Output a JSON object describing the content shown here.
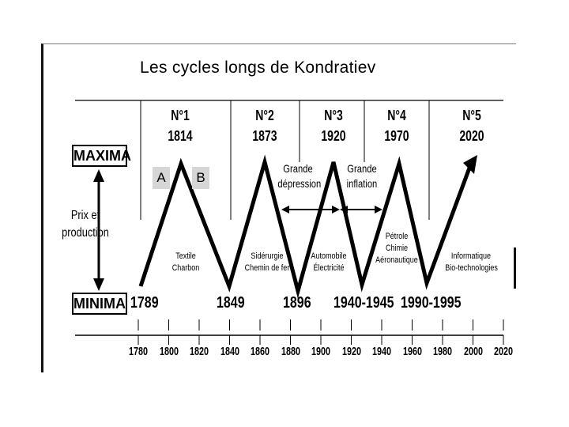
{
  "title": "Les cycles longs de Kondratiev",
  "maxima_label": "MAXIMA",
  "minima_label": "MINIMA",
  "axis_label": {
    "line1": "Prix et",
    "line2": "production"
  },
  "phase_labels": {
    "a": "A",
    "b": "B"
  },
  "cycles": [
    {
      "number": "N°1",
      "year": "1814"
    },
    {
      "number": "N°2",
      "year": "1873"
    },
    {
      "number": "N°3",
      "year": "1920"
    },
    {
      "number": "N°4",
      "year": "1970"
    },
    {
      "number": "N°5",
      "year": "2020"
    }
  ],
  "annotations": {
    "depression": {
      "line1": "Grande",
      "line2": "dépression"
    },
    "inflation": {
      "line1": "Grande",
      "line2": "inflation"
    }
  },
  "sectors": [
    {
      "line1": "Textile",
      "line2": "Charbon"
    },
    {
      "line1": "Sidérurgie",
      "line2": "Chemin de fer"
    },
    {
      "line1": "Automobile",
      "line2": "Électricité"
    },
    {
      "line1": "Pétrole",
      "line2": "Chimie",
      "line3": "Aéronautique"
    },
    {
      "line1": "Informatique",
      "line2": "Bio-technologies"
    }
  ],
  "minima_years": [
    "1789",
    "1849",
    "1896",
    "1940-1945",
    "1990-1995"
  ],
  "timeline_years": [
    "1780",
    "1800",
    "1820",
    "1840",
    "1860",
    "1880",
    "1900",
    "1920",
    "1940",
    "1960",
    "1980",
    "2000",
    "2020"
  ],
  "colors": {
    "line": "#000000",
    "ab_background": "#d6d6d6"
  }
}
